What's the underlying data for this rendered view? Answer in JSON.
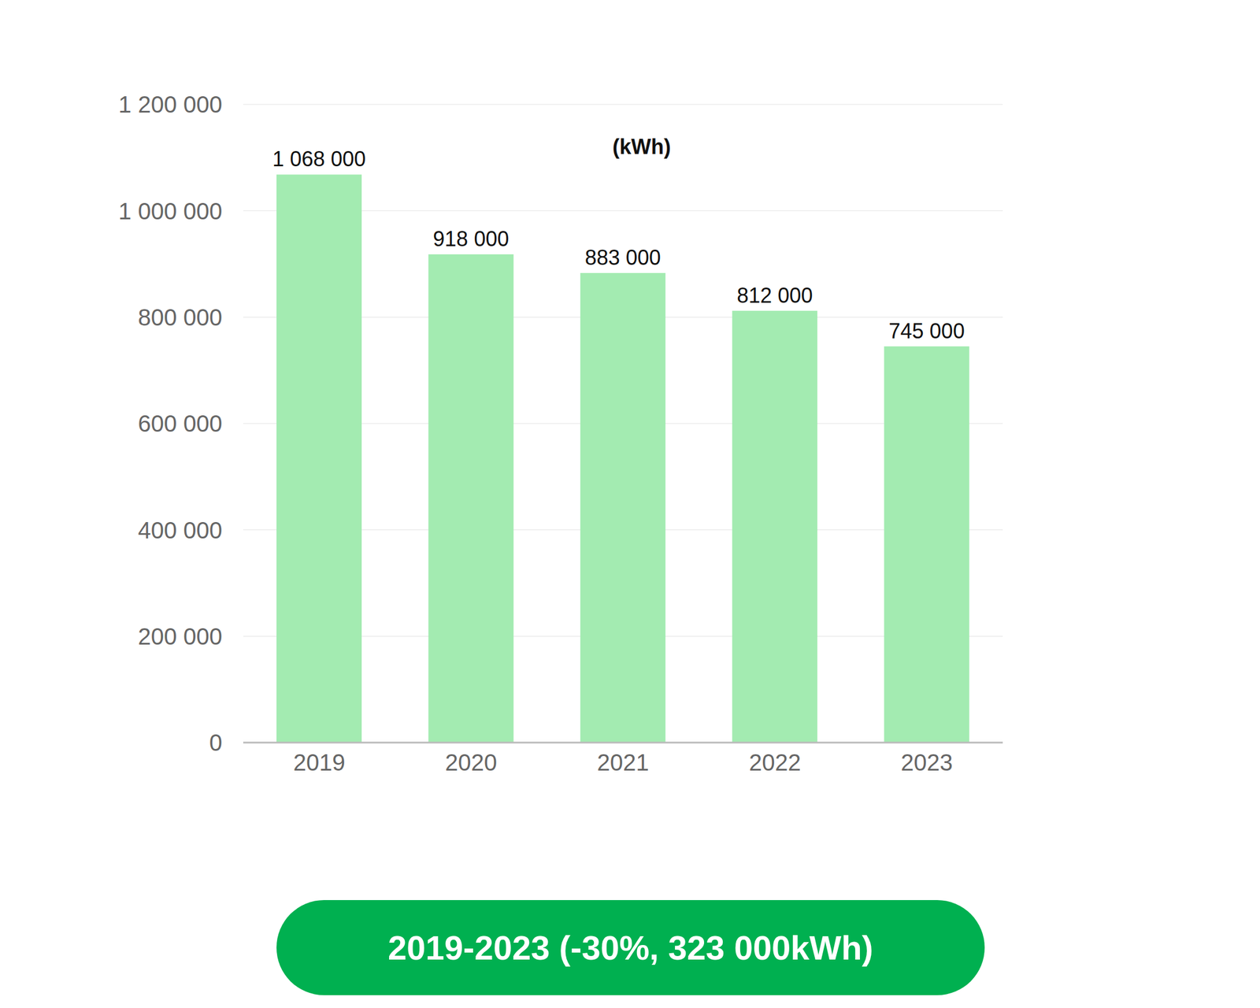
{
  "chart_data": {
    "type": "bar",
    "title": "(kWh)",
    "categories": [
      "2019",
      "2020",
      "2021",
      "2022",
      "2023"
    ],
    "values": [
      1068000,
      918000,
      883000,
      812000,
      745000
    ],
    "value_labels": [
      "1 068 000",
      "918 000",
      "883 000",
      "812 000",
      "745 000"
    ],
    "color": "#a3ebb1",
    "ylim": [
      0,
      1200000
    ],
    "yticks": [
      0,
      {
        "value": 200000,
        "label": "200 000"
      },
      {
        "value": 400000,
        "label": "400 000"
      },
      {
        "value": 600000,
        "label": "600 000"
      },
      {
        "value": 800000,
        "label": "800 000"
      },
      {
        "value": 1000000,
        "label": "1 000 000"
      },
      {
        "value": 1200000,
        "label": "1 200 000"
      }
    ],
    "grid": true,
    "data_labels": true,
    "annotation": "2019-2023 (-30%, 323 000kWh)"
  }
}
